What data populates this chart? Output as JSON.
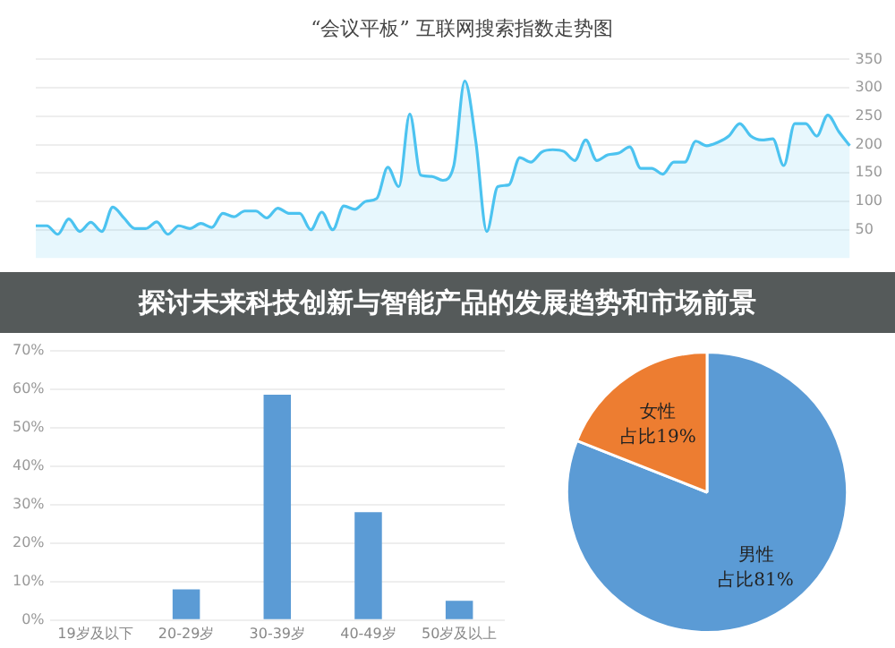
{
  "chart_data": [
    {
      "type": "area",
      "title": "“会议平板” 互联网搜索指数走势图",
      "annotations": [
        "探讨未来科技创新与智能产品的发展趋势和市场前景"
      ],
      "categories": [
        null,
        null,
        null,
        null,
        null,
        null,
        null,
        null,
        null,
        null,
        null,
        null,
        null,
        null,
        null,
        null,
        null,
        null,
        null,
        null,
        null,
        null,
        null,
        null,
        null,
        null,
        null,
        null,
        null,
        null,
        null,
        null,
        null,
        null,
        null,
        null,
        null,
        null,
        null,
        null,
        null,
        null,
        null,
        null,
        null,
        null,
        null,
        null,
        null,
        null,
        null,
        null,
        null,
        null,
        null,
        null,
        null,
        null,
        null,
        null,
        null,
        null,
        null,
        null,
        null,
        null,
        null,
        null,
        null,
        null,
        null,
        null,
        null,
        null,
        null
      ],
      "series": [
        {
          "color": "#4cc3f0",
          "values": [
            57,
            57,
            42,
            69,
            47,
            63,
            47,
            90,
            71,
            52,
            52,
            64,
            42,
            57,
            52,
            61,
            54,
            79,
            73,
            83,
            83,
            71,
            88,
            79,
            79,
            50,
            81,
            50,
            92,
            86,
            100,
            105,
            160,
            126,
            254,
            146,
            144,
            137,
            163,
            312,
            206,
            47,
            126,
            129,
            177,
            169,
            187,
            191,
            188,
            172,
            208,
            172,
            182,
            185,
            196,
            158,
            158,
            148,
            169,
            169,
            206,
            198,
            204,
            215,
            237,
            215,
            208,
            210,
            163,
            237,
            237,
            215,
            252,
            223,
            198
          ]
        }
      ],
      "ylim": [
        0,
        350
      ],
      "yticks": [
        50,
        100,
        150,
        200,
        250,
        300,
        350
      ],
      "grid": "y",
      "tick_labels": "y"
    },
    {
      "type": "bar",
      "categories": [
        "19岁及以下",
        "20-29岁",
        "30-39岁",
        "40-49岁",
        "50岁及以上"
      ],
      "values": [
        0,
        8,
        58.5,
        28,
        5
      ],
      "color": "#5b9bd5",
      "ylim": [
        0,
        70
      ],
      "yticks": [
        {
          "value": 0,
          "label": "0%"
        },
        {
          "value": 10,
          "label": "10%"
        },
        {
          "value": 20,
          "label": "20%"
        },
        {
          "value": 30,
          "label": "30%"
        },
        {
          "value": 40,
          "label": "40%"
        },
        {
          "value": 50,
          "label": "50%"
        },
        {
          "value": 60,
          "label": "60%"
        },
        {
          "value": 70,
          "label": "70%"
        }
      ],
      "grid": "y"
    },
    {
      "type": "pie",
      "categories": [
        "男性",
        "女性"
      ],
      "values": [
        81,
        19
      ],
      "colors": [
        "#5b9bd5",
        "#ed7d31"
      ],
      "value_labels": [
        "占比81%",
        "占比19%"
      ]
    }
  ]
}
